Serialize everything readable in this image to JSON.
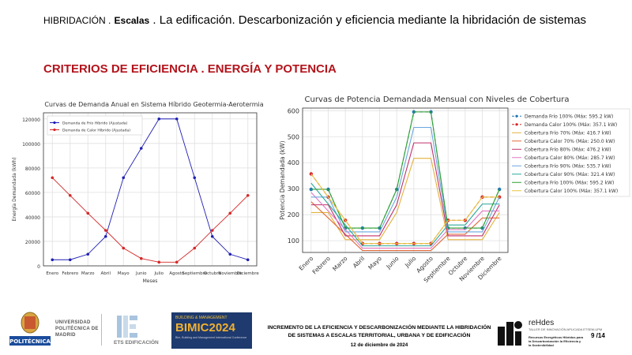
{
  "slide": {
    "header_prefix": "HIBRIDACIÓN .",
    "header_bold": "Escalas",
    "header_rest": ". La edificación. Descarbonización y eficiencia mediante la hibridación de sistemas",
    "subtitle": "CRITERIOS DE EFICIENCIA . ENERGÍA Y POTENCIA"
  },
  "chart_data": [
    {
      "type": "line",
      "title": "Curvas de Demanda Anual en Sistema Híbrido Geotermia-Aerotermia",
      "xlabel": "Meses",
      "ylabel": "Energía Demandada (kWh)",
      "categories": [
        "Enero",
        "Febrero",
        "Marzo",
        "Abril",
        "Mayo",
        "Junio",
        "Julio",
        "Agosto",
        "Septiembre",
        "Octubre",
        "Noviembre",
        "Diciembre"
      ],
      "ylim": [
        0,
        125000
      ],
      "yticks": [
        "0",
        "20000",
        "40000",
        "60000",
        "80000",
        "100000",
        "120000"
      ],
      "grid": true,
      "legend_position": "top-left",
      "series": [
        {
          "name": "Demanda de Frío Híbrido (Ajustada)",
          "color": "#1f1fb4",
          "marker": "circle",
          "values": [
            5000,
            5000,
            9500,
            24000,
            72000,
            96000,
            120000,
            120000,
            72000,
            24000,
            9500,
            5000
          ]
        },
        {
          "name": "Demanda de Calor Híbrido (Ajustada)",
          "color": "#d62728",
          "marker": "circle",
          "values": [
            72000,
            57500,
            43000,
            29000,
            14500,
            6000,
            3000,
            3000,
            14500,
            29000,
            43000,
            57500
          ]
        }
      ]
    },
    {
      "type": "line",
      "title": "Curvas de Potencia Demandada Mensual con Niveles de Cobertura",
      "xlabel": "",
      "ylabel": "Potencia Demandada (kW)",
      "categories": [
        "Enero",
        "Febrero",
        "Marzo",
        "Abril",
        "Mayo",
        "Junio",
        "Julio",
        "Agosto",
        "Septiembre",
        "Octubre",
        "Noviembre",
        "Diciembre"
      ],
      "ylim": [
        55,
        610
      ],
      "yticks": [
        "100",
        "200",
        "300",
        "400",
        "500",
        "600"
      ],
      "grid": true,
      "legend_position": "right",
      "series": [
        {
          "name": "Demanda Frío 100% (Máx: 595.2 kW)",
          "color": "#1f77b4",
          "marker": "circle",
          "dashed": true,
          "values": [
            297.6,
            297.6,
            148.8,
            148.8,
            148.8,
            297.6,
            595.2,
            595.2,
            148.8,
            148.8,
            148.8,
            297.6
          ]
        },
        {
          "name": "Demanda Calor 100% (Máx: 357.1 kW)",
          "color": "#d62728",
          "marker": "circle",
          "dashed": true,
          "values": [
            357.1,
            267.8,
            178.6,
            89.3,
            89.3,
            89.3,
            89.3,
            89.3,
            178.6,
            178.6,
            267.8,
            267.8
          ]
        },
        {
          "name": "Cobertura Frío 70% (Máx: 416.7 kW)",
          "color": "#e3b23c",
          "values": [
            208.3,
            208.3,
            104.2,
            104.2,
            104.2,
            208.3,
            416.7,
            416.7,
            104.2,
            104.2,
            104.2,
            208.3
          ]
        },
        {
          "name": "Cobertura Calor 70% (Máx: 250.0 kW)",
          "color": "#e06b3a",
          "values": [
            250.0,
            187.5,
            125.0,
            62.5,
            62.5,
            62.5,
            62.5,
            62.5,
            125.0,
            125.0,
            187.5,
            187.5
          ]
        },
        {
          "name": "Cobertura Frío 80% (Máx: 476.2 kW)",
          "color": "#c0306b",
          "values": [
            238.1,
            238.1,
            119.0,
            119.0,
            119.0,
            238.1,
            476.2,
            476.2,
            119.0,
            119.0,
            119.0,
            238.1
          ]
        },
        {
          "name": "Cobertura Calor 80% (Máx: 285.7 kW)",
          "color": "#e377c2",
          "values": [
            285.7,
            214.3,
            142.9,
            71.4,
            71.4,
            71.4,
            71.4,
            71.4,
            142.9,
            142.9,
            214.3,
            214.3
          ]
        },
        {
          "name": "Cobertura Frío 90% (Máx: 535.7 kW)",
          "color": "#6aa6e0",
          "values": [
            267.9,
            267.9,
            133.9,
            133.9,
            133.9,
            267.9,
            535.7,
            535.7,
            133.9,
            133.9,
            133.9,
            267.9
          ]
        },
        {
          "name": "Cobertura Calor 90% (Máx: 321.4 kW)",
          "color": "#2ca89a",
          "values": [
            321.4,
            241.1,
            160.7,
            80.4,
            80.4,
            80.4,
            80.4,
            80.4,
            160.7,
            160.7,
            241.1,
            241.1
          ]
        },
        {
          "name": "Cobertura Frío 100% (Máx: 595.2 kW)",
          "color": "#2ca02c",
          "values": [
            297.6,
            297.6,
            148.8,
            148.8,
            148.8,
            297.6,
            595.2,
            595.2,
            148.8,
            148.8,
            148.8,
            297.6
          ]
        },
        {
          "name": "Cobertura Calor 100% (Máx: 357.1 kW)",
          "color": "#e8c340",
          "values": [
            357.1,
            267.8,
            178.6,
            89.3,
            89.3,
            89.3,
            89.3,
            89.3,
            178.6,
            178.6,
            267.8,
            267.8
          ]
        }
      ]
    }
  ],
  "footer": {
    "upm_text": "UNIVERSIDAD POLITÉCNICA DE MADRID",
    "upm_badge": "POLITÉCNICA",
    "ets_text": "ETS EDIFICACIÓN",
    "bimic_top": "BUILDING & MANAGEMENT",
    "bimic_name": "BIMIC2024",
    "bimic_sub": "Bim, Building and Management International Conference",
    "title": "INCREMENTO DE LA EFICIENCIA Y DESCARBONIZACIÓN MEDIANTE LA HIBRIDACIÓN DE SISTEMAS A ESCALAS TERRITORIAL, URBANA Y DE EDIFICACIÓN",
    "date": "12 de diciembre de 2024",
    "rehdes_title": "reHdes",
    "rehdes_sub1": "TALLER DE INNOVACIÓN APLICADA ETSEM-UPM",
    "rehdes_sub2": "Recursos Energéticos Híbridos para la Descarbonización la Eficiencia y la Sostenibilidad",
    "page": "9 /14"
  }
}
